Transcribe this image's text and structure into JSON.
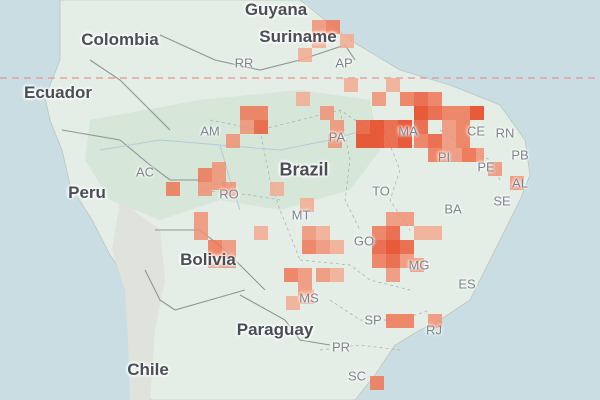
{
  "map": {
    "countries": [
      {
        "id": "guyana",
        "name": "Guyana"
      },
      {
        "id": "suriname",
        "name": "Suriname"
      },
      {
        "id": "colombia",
        "name": "Colombia"
      },
      {
        "id": "ecuador",
        "name": "Ecuador"
      },
      {
        "id": "brazil",
        "name": "Brazil"
      },
      {
        "id": "peru",
        "name": "Peru"
      },
      {
        "id": "bolivia",
        "name": "Bolivia"
      },
      {
        "id": "paraguay",
        "name": "Paraguay"
      },
      {
        "id": "chile",
        "name": "Chile"
      }
    ],
    "states": [
      "RR",
      "AP",
      "AM",
      "PA",
      "MA",
      "CE",
      "RN",
      "PB",
      "PI",
      "PE",
      "AL",
      "AC",
      "RO",
      "TO",
      "SE",
      "BA",
      "MT",
      "GO",
      "MG",
      "MS",
      "ES",
      "SP",
      "RJ",
      "PR",
      "SC"
    ],
    "colors": {
      "ocean": "#c9dde3",
      "land": "#e4ede6",
      "forest": "#d6e6d9",
      "equator": "#d99a97",
      "heat_low": "#f6c4ad",
      "heat_high": "#e8411b"
    }
  }
}
